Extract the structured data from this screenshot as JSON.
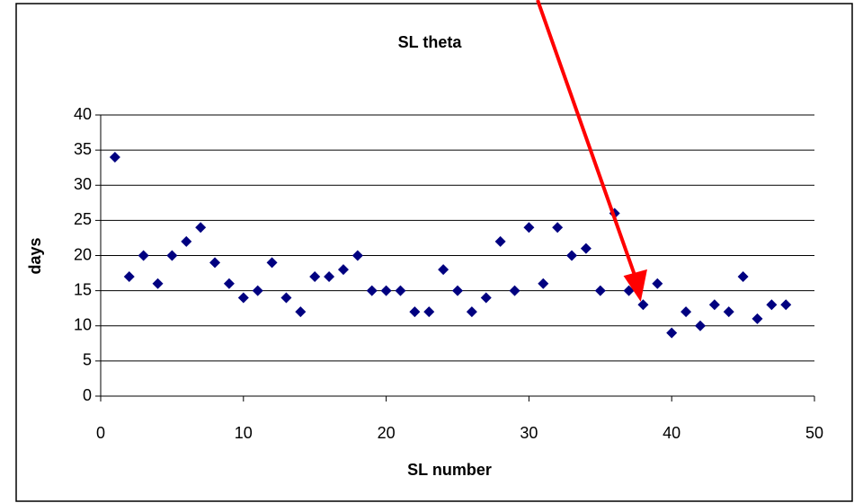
{
  "chart_data": {
    "type": "scatter",
    "title": "SL theta",
    "x_label": "SL number",
    "y_label": "days",
    "x": [
      1,
      2,
      3,
      4,
      5,
      6,
      7,
      8,
      9,
      10,
      11,
      12,
      13,
      14,
      15,
      16,
      17,
      18,
      19,
      20,
      21,
      22,
      23,
      24,
      25,
      26,
      27,
      28,
      29,
      30,
      31,
      32,
      33,
      34,
      35,
      36,
      37,
      38,
      39,
      40,
      41,
      42,
      43,
      44,
      45,
      46,
      47,
      48
    ],
    "values": [
      34,
      17,
      20,
      16,
      20,
      22,
      24,
      19,
      16,
      14,
      15,
      19,
      14,
      12,
      17,
      17,
      18,
      20,
      15,
      15,
      15,
      12,
      12,
      18,
      15,
      12,
      14,
      22,
      15,
      24,
      16,
      24,
      20,
      21,
      15,
      26,
      15,
      13,
      16,
      9,
      12,
      10,
      13,
      12,
      17,
      11,
      13,
      13
    ],
    "color": "#000080",
    "xlim": [
      0,
      50
    ],
    "xticks": [
      0,
      10,
      20,
      30,
      40,
      50
    ],
    "ylim": [
      0,
      40
    ],
    "yticks": [
      0,
      5,
      10,
      15,
      20,
      25,
      30,
      35,
      40
    ],
    "grid": true
  }
}
